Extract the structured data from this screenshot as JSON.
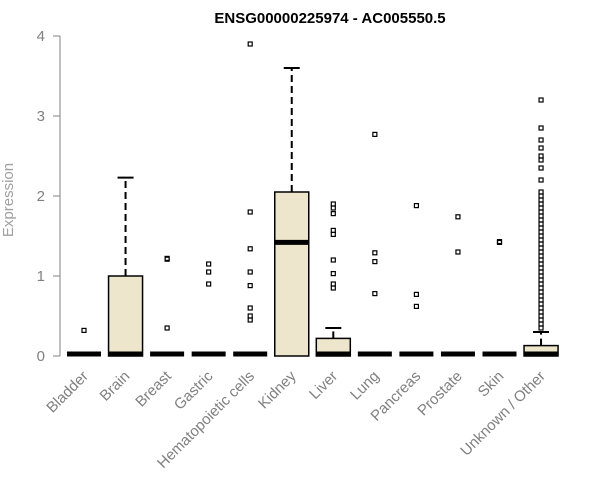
{
  "chart_data": {
    "type": "box",
    "title": "ENSG00000225974 - AC005550.5",
    "ylabel": "Expression",
    "xlabel": "",
    "ylim": [
      0,
      4
    ],
    "yticks": [
      0,
      1,
      2,
      3,
      4
    ],
    "box_fill": "#ede6cc",
    "stroke": "#000000",
    "axis_color": "#808080",
    "label_color": "#808080",
    "categories": [
      "Bladder",
      "Brain",
      "Breast",
      "Gastric",
      "Hematopoietic cells",
      "Kidney",
      "Liver",
      "Lung",
      "Pancreas",
      "Prostate",
      "Skin",
      "Unknown / Other"
    ],
    "boxes": [
      {
        "category": "Bladder",
        "q1": 0,
        "median": 0,
        "q3": 0,
        "whisker_low": 0,
        "whisker_high": 0,
        "outliers": [
          0.32
        ]
      },
      {
        "category": "Brain",
        "q1": 0,
        "median": 0,
        "q3": 1.0,
        "whisker_low": 0,
        "whisker_high": 2.23,
        "outliers": []
      },
      {
        "category": "Breast",
        "q1": 0,
        "median": 0,
        "q3": 0,
        "whisker_low": 0,
        "whisker_high": 0,
        "outliers": [
          1.21,
          1.22,
          0.35
        ]
      },
      {
        "category": "Gastric",
        "q1": 0,
        "median": 0,
        "q3": 0,
        "whisker_low": 0,
        "whisker_high": 0,
        "outliers": [
          1.15,
          1.05,
          0.9
        ]
      },
      {
        "category": "Hematopoietic cells",
        "q1": 0,
        "median": 0,
        "q3": 0,
        "whisker_low": 0,
        "whisker_high": 0,
        "outliers": [
          3.9,
          1.8,
          1.34,
          1.05,
          0.88,
          0.6,
          0.5,
          0.45
        ]
      },
      {
        "category": "Kidney",
        "q1": 0,
        "median": 1.42,
        "q3": 2.05,
        "whisker_low": 0,
        "whisker_high": 3.6,
        "outliers": []
      },
      {
        "category": "Liver",
        "q1": 0,
        "median": 0,
        "q3": 0.22,
        "whisker_low": 0,
        "whisker_high": 0.35,
        "outliers": [
          1.9,
          1.85,
          1.78,
          1.57,
          1.52,
          1.2,
          1.03,
          0.9,
          0.85
        ]
      },
      {
        "category": "Lung",
        "q1": 0,
        "median": 0,
        "q3": 0,
        "whisker_low": 0,
        "whisker_high": 0,
        "outliers": [
          2.77,
          1.29,
          1.18,
          0.78
        ]
      },
      {
        "category": "Pancreas",
        "q1": 0,
        "median": 0,
        "q3": 0,
        "whisker_low": 0,
        "whisker_high": 0,
        "outliers": [
          1.88,
          0.77,
          0.62
        ]
      },
      {
        "category": "Prostate",
        "q1": 0,
        "median": 0,
        "q3": 0,
        "whisker_low": 0,
        "whisker_high": 0,
        "outliers": [
          1.74,
          1.3
        ]
      },
      {
        "category": "Skin",
        "q1": 0,
        "median": 0,
        "q3": 0,
        "whisker_low": 0,
        "whisker_high": 0,
        "outliers": [
          1.43,
          1.42
        ]
      },
      {
        "category": "Unknown / Other",
        "q1": 0,
        "median": 0,
        "q3": 0.13,
        "whisker_low": 0,
        "whisker_high": 0.3,
        "outliers": [
          3.2,
          2.85,
          2.7,
          2.6,
          2.5,
          2.45,
          2.35,
          2.2,
          2.05,
          2.0,
          1.95,
          1.9,
          1.85,
          1.8,
          1.75,
          1.7,
          1.65,
          1.6,
          1.55,
          1.5,
          1.45,
          1.4,
          1.35,
          1.3,
          1.25,
          1.2,
          1.15,
          1.1,
          1.05,
          1.0,
          0.95,
          0.9,
          0.85,
          0.8,
          0.75,
          0.7,
          0.65,
          0.6,
          0.55,
          0.5,
          0.45,
          0.4,
          0.35
        ]
      }
    ]
  }
}
